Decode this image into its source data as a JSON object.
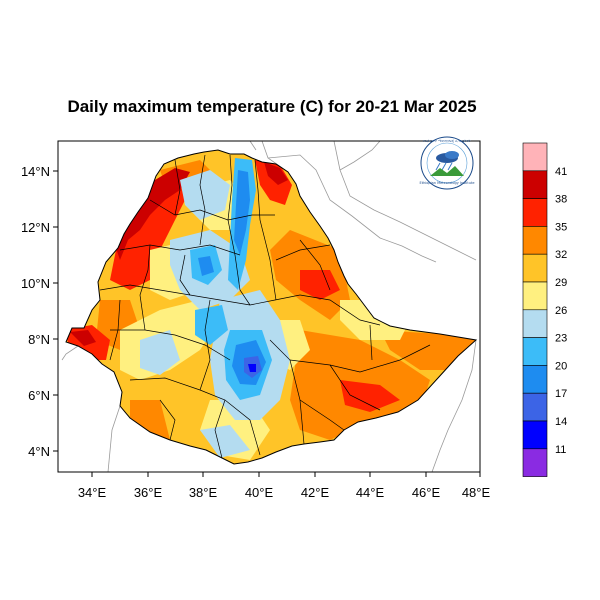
{
  "title": "Daily maximum temperature (C) for 20-21 Mar 2025",
  "map": {
    "lon_range": [
      33,
      48
    ],
    "lat_range": [
      3.2,
      15
    ],
    "x_ticks": [
      "34°E",
      "36°E",
      "38°E",
      "40°E",
      "42°E",
      "44°E",
      "46°E",
      "48°E"
    ],
    "y_ticks": [
      "14°N",
      "12°N",
      "10°N",
      "8°N",
      "6°N",
      "4°N"
    ]
  },
  "logo": {
    "top_text": "የኢትዮጵያ ሜቲዎሮሎጂ ኢንስቲትዩት",
    "bottom_text": "Ethiopian Meteorology Institute"
  },
  "colorbar": {
    "labels": [
      "41",
      "38",
      "35",
      "32",
      "29",
      "26",
      "23",
      "20",
      "17",
      "14",
      "11"
    ],
    "colors": [
      "#ffb3b8",
      "#cc0000",
      "#ff2200",
      "#ff8800",
      "#ffc428",
      "#fff080",
      "#b4dcf0",
      "#3cbcf8",
      "#1e8cf0",
      "#3c64e6",
      "#0000ff",
      "#8a2be2"
    ]
  }
}
